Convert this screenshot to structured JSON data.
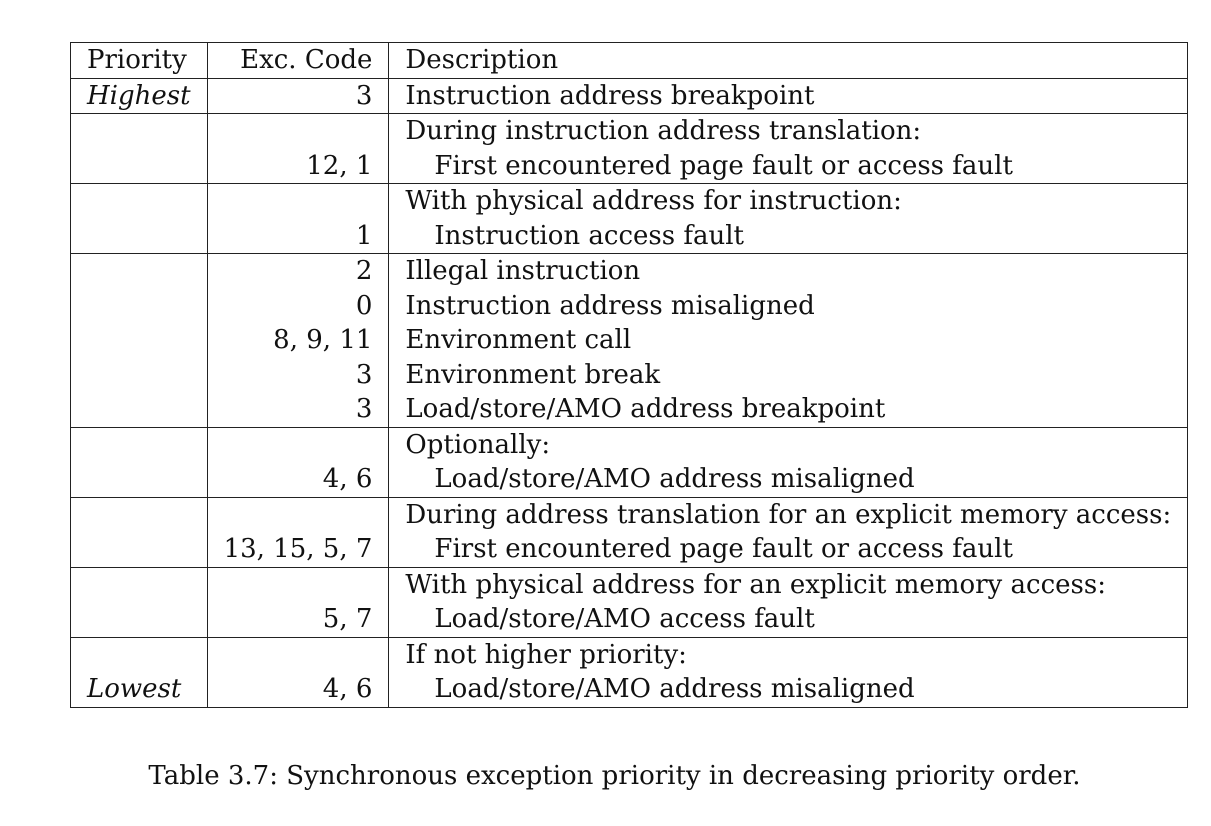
{
  "table": {
    "headers": {
      "priority": "Priority",
      "code": "Exc. Code",
      "description": "Description"
    },
    "rows": [
      {
        "priority": "Highest",
        "code": "3",
        "description": "Instruction address breakpoint",
        "indent": false,
        "group_start": true
      },
      {
        "priority": "",
        "code": "",
        "description": "During instruction address translation:",
        "indent": false,
        "group_start": true
      },
      {
        "priority": "",
        "code": "12, 1",
        "description": "First encountered page fault or access fault",
        "indent": true,
        "group_start": false
      },
      {
        "priority": "",
        "code": "",
        "description": "With physical address for instruction:",
        "indent": false,
        "group_start": true
      },
      {
        "priority": "",
        "code": "1",
        "description": "Instruction access fault",
        "indent": true,
        "group_start": false
      },
      {
        "priority": "",
        "code": "2",
        "description": "Illegal instruction",
        "indent": false,
        "group_start": true
      },
      {
        "priority": "",
        "code": "0",
        "description": "Instruction address misaligned",
        "indent": false,
        "group_start": false
      },
      {
        "priority": "",
        "code": "8, 9, 11",
        "description": "Environment call",
        "indent": false,
        "group_start": false
      },
      {
        "priority": "",
        "code": "3",
        "description": "Environment break",
        "indent": false,
        "group_start": false
      },
      {
        "priority": "",
        "code": "3",
        "description": "Load/store/AMO address breakpoint",
        "indent": false,
        "group_start": false
      },
      {
        "priority": "",
        "code": "",
        "description": "Optionally:",
        "indent": false,
        "group_start": true
      },
      {
        "priority": "",
        "code": "4, 6",
        "description": "Load/store/AMO address misaligned",
        "indent": true,
        "group_start": false
      },
      {
        "priority": "",
        "code": "",
        "description": "During address translation for an explicit memory access:",
        "indent": false,
        "group_start": true
      },
      {
        "priority": "",
        "code": "13, 15, 5, 7",
        "description": "First encountered page fault or access fault",
        "indent": true,
        "group_start": false
      },
      {
        "priority": "",
        "code": "",
        "description": "With physical address for an explicit memory access:",
        "indent": false,
        "group_start": true
      },
      {
        "priority": "",
        "code": "5, 7",
        "description": "Load/store/AMO access fault",
        "indent": true,
        "group_start": false
      },
      {
        "priority": "",
        "code": "",
        "description": "If not higher priority:",
        "indent": false,
        "group_start": true
      },
      {
        "priority": "Lowest",
        "code": "4, 6",
        "description": "Load/store/AMO address misaligned",
        "indent": true,
        "group_start": false
      }
    ]
  },
  "caption": "Table 3.7: Synchronous exception priority in decreasing priority order."
}
